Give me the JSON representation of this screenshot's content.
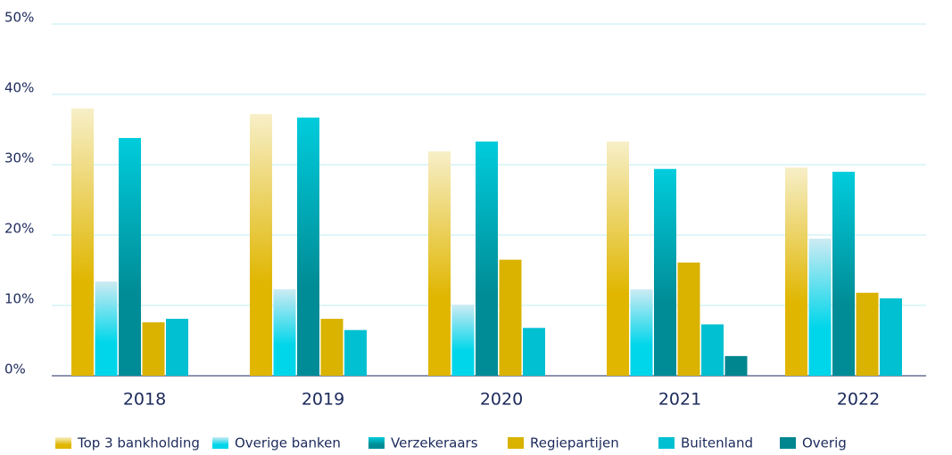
{
  "chart_data": {
    "type": "bar",
    "categories": [
      "2018",
      "2019",
      "2020",
      "2021",
      "2022"
    ],
    "series": [
      {
        "name": "Top 3 bankholding",
        "color": [
          "#f7efc8",
          "#e0b600"
        ],
        "values": [
          38.0,
          37.2,
          31.9,
          33.3,
          29.6
        ]
      },
      {
        "name": "Overige banken",
        "color": [
          "#cdebf3",
          "#00d6ea"
        ],
        "values": [
          13.4,
          12.3,
          10.1,
          12.3,
          19.5
        ]
      },
      {
        "name": "Verzekeraars",
        "color": [
          "#00ccdc",
          "#008c96"
        ],
        "values": [
          33.8,
          36.7,
          33.3,
          29.4,
          29.0
        ]
      },
      {
        "name": "Regiepartijen",
        "color": [
          "#d9b300",
          "#d9b300"
        ],
        "values": [
          7.6,
          8.1,
          16.5,
          16.1,
          11.8
        ]
      },
      {
        "name": "Buitenland",
        "color": [
          "#00c0d2",
          "#00c0d2"
        ],
        "values": [
          8.1,
          6.5,
          6.8,
          7.3,
          11.0
        ]
      },
      {
        "name": "Overig",
        "color": [
          "#00868f",
          "#00868f"
        ],
        "values": [
          null,
          null,
          null,
          2.8,
          null
        ]
      }
    ],
    "ylim": [
      0,
      50
    ],
    "yticks": [
      {
        "value": 0,
        "label": "0%"
      },
      {
        "value": 10,
        "label": "10%"
      },
      {
        "value": 20,
        "label": "20%"
      },
      {
        "value": 30,
        "label": "30%"
      },
      {
        "value": 40,
        "label": "40%"
      },
      {
        "value": 50,
        "label": "50%"
      }
    ],
    "grid": true
  }
}
